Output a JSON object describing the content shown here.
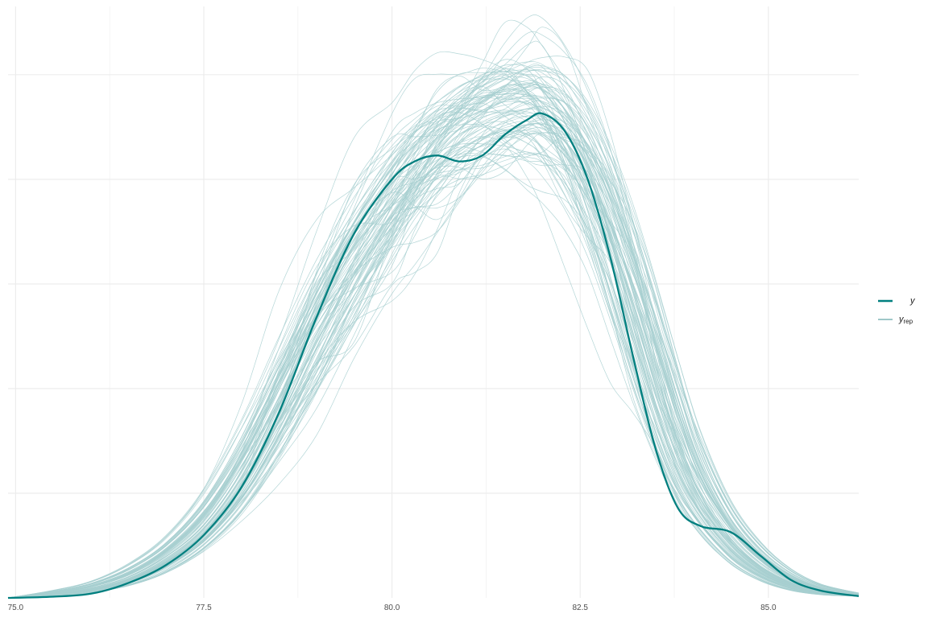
{
  "chart_data": {
    "type": "line",
    "title": "",
    "xlabel": "",
    "ylabel": "",
    "xlim": [
      74.9,
      86.2
    ],
    "ylim": [
      0,
      1
    ],
    "x_ticks": [
      75.0,
      77.5,
      80.0,
      82.5,
      85.0
    ],
    "x_tick_labels": [
      "75.0",
      "77.5",
      "80.0",
      "82.5",
      "85.0"
    ],
    "x_minor_grid": [
      76.25,
      78.75,
      81.25,
      83.75
    ],
    "y_grid": [
      0.175,
      0.35,
      0.525,
      0.7,
      0.875
    ],
    "y_axis_labels_shown": false,
    "grid": true,
    "legend_position": "right",
    "colors": {
      "y": "#007f7f",
      "yrep": "#a7cfd0",
      "grid": "#ebebeb"
    },
    "legend": [
      {
        "key": "y",
        "label": "y",
        "subscript": "",
        "color": "#007f7f"
      },
      {
        "key": "yrep",
        "label": "y",
        "subscript": "rep",
        "color": "#9fc8c9"
      }
    ],
    "series": [
      {
        "key": "y",
        "x": [
          74.9,
          75.5,
          76.0,
          76.5,
          77.0,
          77.5,
          78.0,
          78.5,
          79.0,
          79.5,
          80.0,
          80.3,
          80.6,
          80.9,
          81.2,
          81.5,
          81.8,
          82.0,
          82.3,
          82.6,
          82.9,
          83.2,
          83.5,
          83.8,
          84.1,
          84.5,
          84.9,
          85.3,
          85.7,
          86.2
        ],
        "y": [
          0.0,
          0.002,
          0.007,
          0.025,
          0.055,
          0.105,
          0.185,
          0.31,
          0.47,
          0.61,
          0.7,
          0.73,
          0.74,
          0.73,
          0.74,
          0.775,
          0.8,
          0.81,
          0.78,
          0.7,
          0.57,
          0.405,
          0.25,
          0.15,
          0.12,
          0.11,
          0.07,
          0.03,
          0.012,
          0.003
        ]
      }
    ],
    "replicates": {
      "count": 100,
      "x": [
        74.9,
        75.5,
        76.0,
        76.5,
        77.0,
        77.5,
        78.0,
        78.5,
        79.0,
        79.5,
        80.0,
        80.3,
        80.6,
        80.9,
        81.2,
        81.5,
        81.8,
        82.0,
        82.3,
        82.6,
        82.9,
        83.2,
        83.5,
        83.8,
        84.1,
        84.5,
        84.9,
        85.3,
        85.7,
        86.2
      ],
      "mean_y": [
        0.0,
        0.006,
        0.015,
        0.032,
        0.065,
        0.115,
        0.2,
        0.32,
        0.455,
        0.57,
        0.66,
        0.71,
        0.75,
        0.78,
        0.8,
        0.82,
        0.825,
        0.815,
        0.775,
        0.705,
        0.61,
        0.49,
        0.365,
        0.25,
        0.165,
        0.095,
        0.05,
        0.024,
        0.01,
        0.003
      ]
    }
  }
}
